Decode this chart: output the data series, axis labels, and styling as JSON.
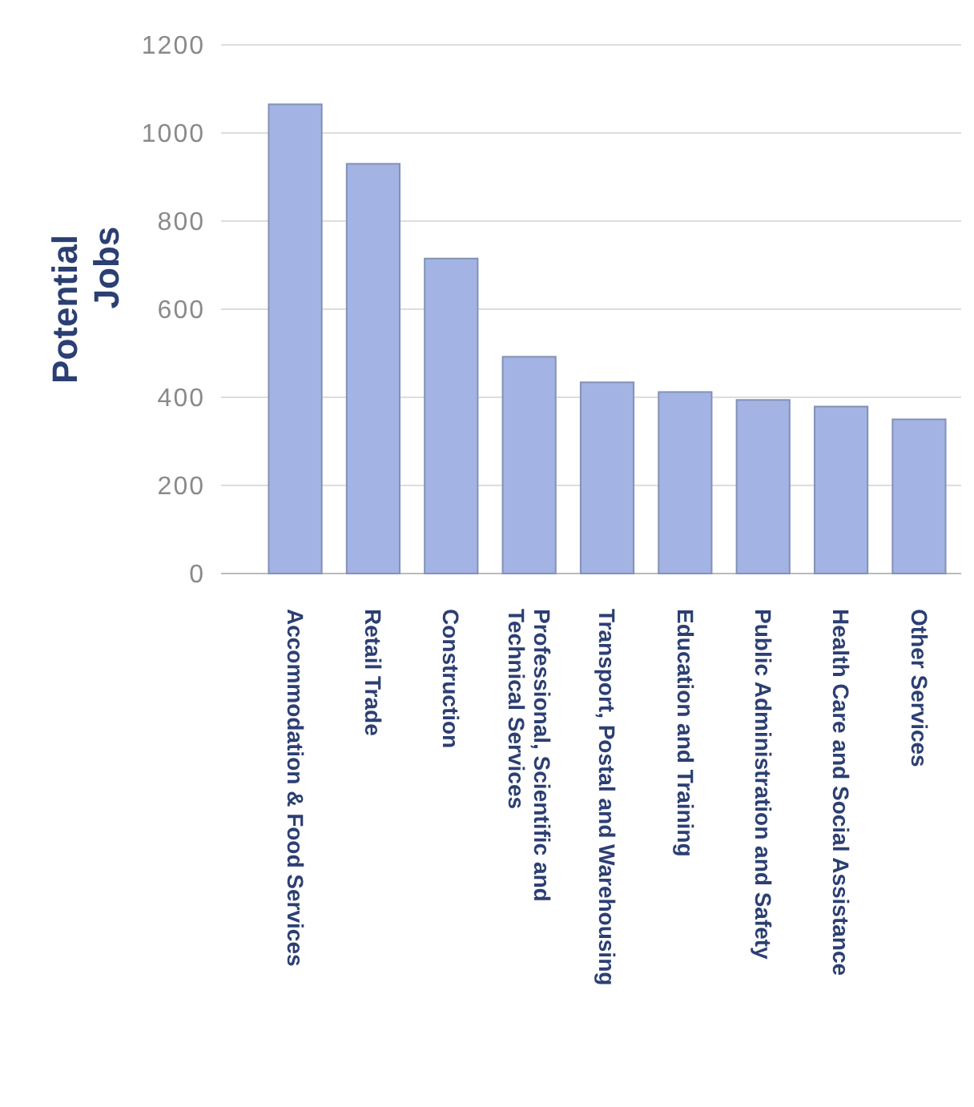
{
  "chart_data": {
    "type": "bar",
    "ylabel": "Potential Jobs",
    "categories": [
      "Accommodation & Food Services",
      "Retail Trade",
      "Construction",
      "Professional, Scientific and Technical Services",
      "Transport, Postal and Warehousing",
      "Education and Training",
      "Public Administration and Safety",
      "Health Care and Social Assistance",
      "Other Services"
    ],
    "values": [
      1065,
      930,
      715,
      492,
      434,
      412,
      394,
      379,
      350
    ],
    "color": "#a3b3e3",
    "ylim": [
      0,
      1200
    ],
    "yticks": [
      0,
      200,
      400,
      600,
      800,
      1000,
      1200
    ],
    "grid": "y"
  }
}
